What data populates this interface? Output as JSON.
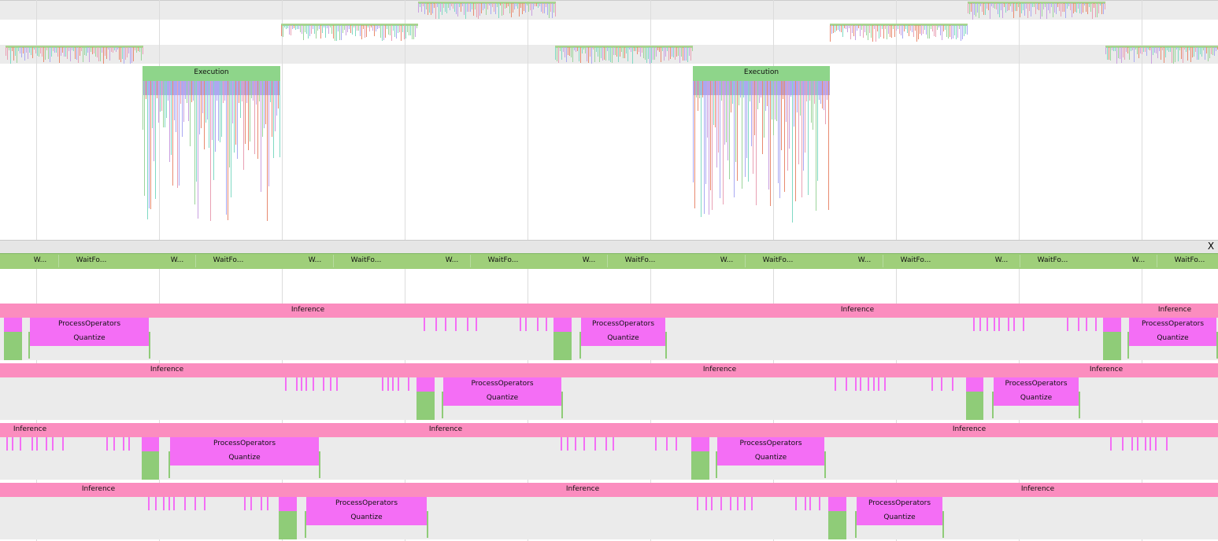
{
  "colors": {
    "execution": "#8ed58a",
    "wait": "#9fcf7a",
    "inference": "#fb8dbf",
    "process": "#f46ef5",
    "green_bar": "#8fcc78",
    "track_bg": "#ebebeb",
    "grid": "#dcdcdc",
    "tick_palette": [
      "#e88a6f",
      "#7fd9c3",
      "#a9a8f2",
      "#c9a0e0",
      "#9bd49a",
      "#e9a0b4"
    ]
  },
  "top_panel": {
    "execution_label": "Execution"
  },
  "divider": {
    "close_label": "X"
  },
  "wait_row": {
    "short_label": "W...",
    "long_label": "WaitFo..."
  },
  "thread_rows": {
    "inference_label": "Inference",
    "process_label": "ProcessOperators",
    "quantize_label": "Quantize"
  }
}
